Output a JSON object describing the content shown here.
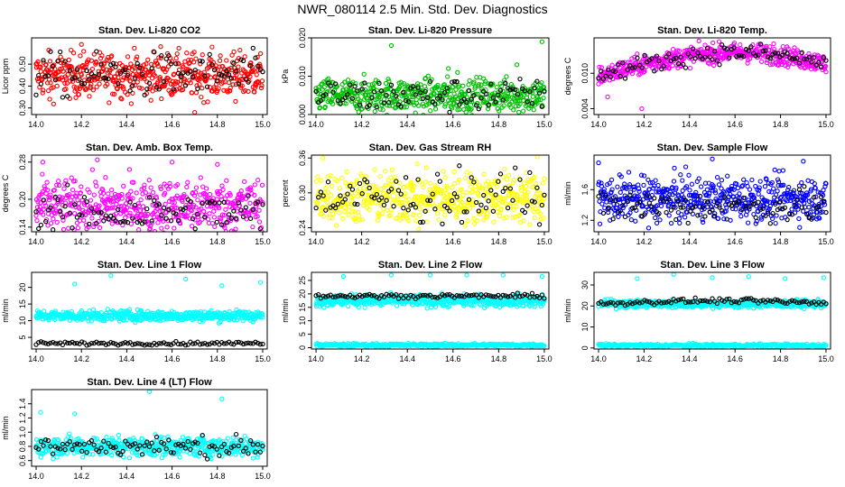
{
  "title": "NWR_080114  2.5 Min. Std. Dev. Diagnostics",
  "chart_data": [
    {
      "type": "scatter",
      "title": "Stan. Dev. Li-820 CO2",
      "ylabel": "Licor ppm",
      "color": "#ff0000",
      "xlim": [
        13.98,
        15.02
      ],
      "ylim": [
        0.27,
        0.62
      ],
      "xticks": [
        "14.0",
        "14.2",
        "14.4",
        "14.6",
        "14.8",
        "15.0"
      ],
      "yticks": [
        "0.30",
        "0.40",
        "0.50"
      ],
      "base": 0.45,
      "spread": 0.05,
      "outliers": [
        [
          14.2,
          0.59
        ],
        [
          14.06,
          0.34
        ],
        [
          14.7,
          0.28
        ],
        [
          14.88,
          0.33
        ],
        [
          14.55,
          0.58
        ]
      ],
      "blackOffset": 0,
      "blackSpread": 1
    },
    {
      "type": "scatter",
      "title": "Stan. Dev. Li-820 Pressure",
      "ylabel": "kPa",
      "color": "#00c000",
      "xlim": [
        13.98,
        15.02
      ],
      "ylim": [
        0.0,
        0.02
      ],
      "xticks": [
        "14.0",
        "14.2",
        "14.4",
        "14.6",
        "14.8",
        "15.0"
      ],
      "yticks": [
        "0.000",
        "0.010",
        "0.020"
      ],
      "base": 0.005,
      "spread": 0.0022,
      "outliers": [
        [
          14.33,
          0.018
        ],
        [
          14.99,
          0.019
        ],
        [
          14.58,
          0.012
        ],
        [
          14.62,
          0.011
        ],
        [
          14.88,
          0.013
        ]
      ],
      "blackOffset": 0,
      "blackSpread": 1
    },
    {
      "type": "scatter",
      "title": "Stan. Dev. Li-820 Temp.",
      "ylabel": "degrees C",
      "color": "#ff00ff",
      "xlim": [
        13.98,
        15.02
      ],
      "ylim": [
        0.003,
        0.016
      ],
      "xticks": [
        "14.0",
        "14.2",
        "14.4",
        "14.6",
        "14.8",
        "15.0"
      ],
      "yticks": [
        "0.004",
        "0.010"
      ],
      "base": 0.01,
      "spread": 0.0008,
      "outliers": [
        [
          14.04,
          0.006
        ],
        [
          14.19,
          0.004
        ],
        [
          14.77,
          0.015
        ]
      ],
      "trend": "temp",
      "blackOffset": 0,
      "blackSpread": 1
    },
    {
      "type": "scatter",
      "title": "Stan. Dev. Amb. Box Temp.",
      "ylabel": "degrees C",
      "color": "#ff00ff",
      "xlim": [
        13.98,
        15.02
      ],
      "ylim": [
        0.13,
        0.295
      ],
      "xticks": [
        "14.0",
        "14.2",
        "14.4",
        "14.6",
        "14.8",
        "15.0"
      ],
      "yticks": [
        "0.14",
        "0.20",
        "0.28"
      ],
      "base": 0.185,
      "spread": 0.028,
      "outliers": [
        [
          14.03,
          0.28
        ],
        [
          14.27,
          0.285
        ],
        [
          14.6,
          0.28
        ],
        [
          14.8,
          0.275
        ]
      ],
      "blackOffset": -0.015,
      "blackSpread": 0.8
    },
    {
      "type": "scatter",
      "title": "Stan. Dev. Gas Stream RH",
      "ylabel": "percent",
      "color": "#ffff00",
      "xlim": [
        13.98,
        15.02
      ],
      "ylim": [
        0.233,
        0.365
      ],
      "xticks": [
        "14.0",
        "14.2",
        "14.4",
        "14.6",
        "14.8",
        "15.0"
      ],
      "yticks": [
        "0.24",
        "0.30",
        "0.36"
      ],
      "base": 0.292,
      "spread": 0.022,
      "outliers": [
        [
          14.03,
          0.36
        ],
        [
          14.97,
          0.362
        ],
        [
          14.45,
          0.238
        ]
      ],
      "blackOffset": 0,
      "blackSpread": 1
    },
    {
      "type": "scatter",
      "title": "Stan. Dev. Sample Flow",
      "ylabel": "ml/min",
      "color": "#0000ff",
      "xlim": [
        13.98,
        15.02
      ],
      "ylim": [
        1.05,
        2.05
      ],
      "xticks": [
        "14.0",
        "14.2",
        "14.4",
        "14.6",
        "14.8",
        "15.0"
      ],
      "yticks": [
        "1.2",
        "1.6"
      ],
      "base": 1.48,
      "spread": 0.14,
      "outliers": [
        [
          14.0,
          1.95
        ],
        [
          14.5,
          2.0
        ],
        [
          14.9,
          1.97
        ],
        [
          14.22,
          1.1
        ]
      ],
      "blackOffset": -0.1,
      "blackSpread": 0.8
    },
    {
      "type": "scatter",
      "title": "Stan. Dev. Line 1 Flow",
      "ylabel": "ml/min",
      "color": "#00ffff",
      "xlim": [
        13.98,
        15.02
      ],
      "ylim": [
        1.5,
        24.5
      ],
      "xticks": [
        "14.0",
        "14.2",
        "14.4",
        "14.6",
        "14.8",
        "15.0"
      ],
      "yticks": [
        "5",
        "10",
        "15",
        "20"
      ],
      "base": 11.5,
      "spread": 0.8,
      "outliers": [
        [
          14.17,
          21
        ],
        [
          14.33,
          23.5
        ],
        [
          14.66,
          22.5
        ],
        [
          14.82,
          20.5
        ],
        [
          14.99,
          21.5
        ]
      ],
      "blackLevel": 3.2,
      "blackSpread": 0.25
    },
    {
      "type": "scatter",
      "title": "Stan. Dev. Line 2 Flow",
      "ylabel": "ml/min",
      "color": "#00ffff",
      "xlim": [
        13.98,
        15.02
      ],
      "ylim": [
        -0.5,
        28
      ],
      "xticks": [
        "14.0",
        "14.2",
        "14.4",
        "14.6",
        "14.8",
        "15.0"
      ],
      "yticks": [
        "0",
        "5",
        "10",
        "15",
        "20",
        "25"
      ],
      "base": 17.5,
      "spread": 1.1,
      "lowBand": 1.0,
      "lowSpread": 0.3,
      "outliers": [
        [
          14.12,
          26.5
        ],
        [
          14.33,
          27
        ],
        [
          14.5,
          27
        ],
        [
          14.66,
          27
        ],
        [
          14.82,
          27
        ],
        [
          14.99,
          26.5
        ]
      ],
      "blackLevel": 19.2,
      "blackSpread": 0.4
    },
    {
      "type": "scatter",
      "title": "Stan. Dev. Line 3 Flow",
      "ylabel": "ml/min",
      "color": "#00ffff",
      "xlim": [
        13.98,
        15.02
      ],
      "ylim": [
        -0.5,
        36
      ],
      "xticks": [
        "14.0",
        "14.2",
        "14.4",
        "14.6",
        "14.8",
        "15.0"
      ],
      "yticks": [
        "0",
        "10",
        "20",
        "30"
      ],
      "base": 21,
      "spread": 0.9,
      "lowBand": 1.2,
      "lowSpread": 0.4,
      "outliers": [
        [
          14.17,
          33
        ],
        [
          14.33,
          35
        ],
        [
          14.5,
          33.5
        ],
        [
          14.66,
          34
        ],
        [
          14.82,
          33
        ],
        [
          14.99,
          33.5
        ]
      ],
      "blackLevel": 21,
      "blackSpread": 0.6
    },
    {
      "type": "scatter",
      "title": "Stan. Dev. Line 4 (LT) Flow",
      "ylabel": "ml/min",
      "color": "#00ffff",
      "xlim": [
        13.98,
        15.02
      ],
      "ylim": [
        0.52,
        1.6
      ],
      "xticks": [
        "14.0",
        "14.2",
        "14.4",
        "14.6",
        "14.8",
        "15.0"
      ],
      "yticks": [
        "0.6",
        "0.8",
        "1.0",
        "1.2",
        "1.4"
      ],
      "base": 0.8,
      "spread": 0.07,
      "outliers": [
        [
          14.17,
          1.26
        ],
        [
          14.5,
          1.57
        ],
        [
          14.82,
          1.47
        ],
        [
          14.02,
          1.28
        ]
      ],
      "blackOffset": 0,
      "blackSpread": 1
    }
  ]
}
